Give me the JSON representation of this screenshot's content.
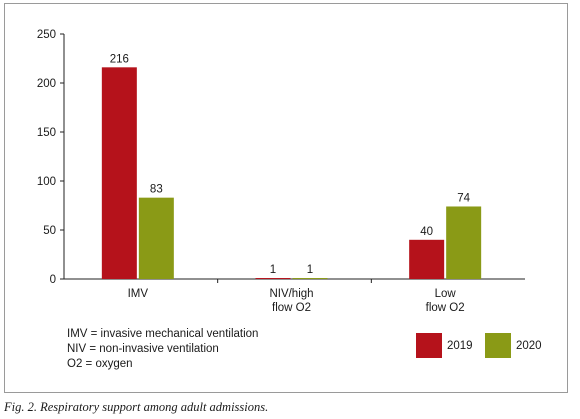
{
  "chart_data": {
    "type": "bar",
    "categories": [
      [
        "IMV"
      ],
      [
        "NIV/high",
        "flow O2"
      ],
      [
        "Low",
        "flow O2"
      ]
    ],
    "series": [
      {
        "name": "2019",
        "color": "#b5121b",
        "values": [
          216,
          1,
          40
        ]
      },
      {
        "name": "2020",
        "color": "#8a9a16",
        "values": [
          83,
          1,
          74
        ]
      }
    ],
    "ylim": [
      0,
      250
    ],
    "yticks": [
      0,
      50,
      100,
      150,
      200,
      250
    ],
    "grid": false,
    "legend_position": "bottom-right"
  },
  "notes": [
    "IMV = invasive mechanical ventilation",
    "NIV = non-invasive ventilation",
    "O2 = oxygen"
  ],
  "legend": [
    {
      "label": "2019",
      "color": "#b5121b"
    },
    {
      "label": "2020",
      "color": "#8a9a16"
    }
  ],
  "caption": "Fig. 2. Respiratory support among adult admissions."
}
